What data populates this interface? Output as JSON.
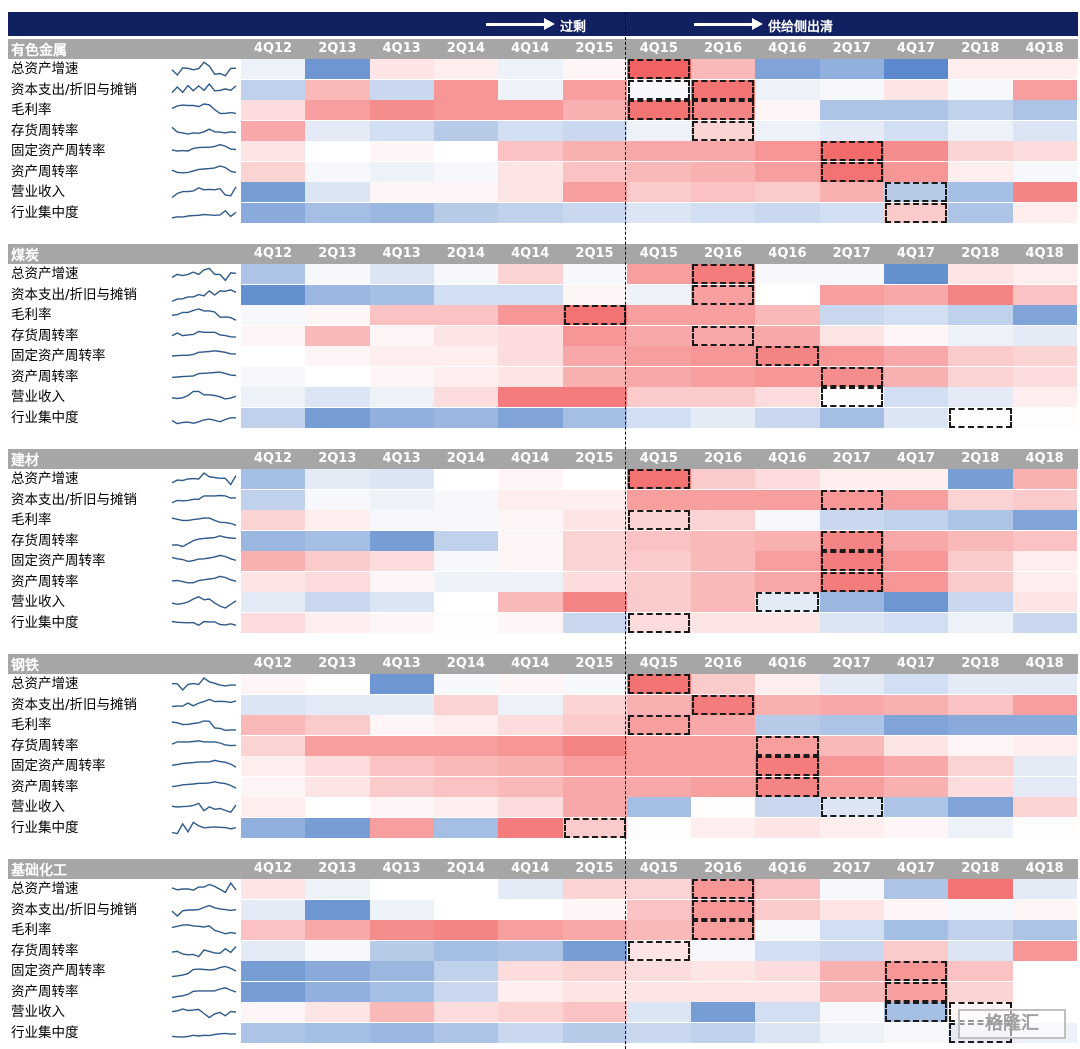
{
  "header": {
    "excess_label": "过剩",
    "clearing_label": "供给侧出清"
  },
  "watermark": "格隆汇",
  "chart_data": {
    "type": "heatmap",
    "color_scale": {
      "low": "#4a7cc7",
      "mid": "#ffffff",
      "high": "#f05050"
    },
    "columns": [
      "4Q12",
      "2Q13",
      "4Q13",
      "2Q14",
      "4Q14",
      "2Q15",
      "4Q15",
      "2Q16",
      "4Q16",
      "2Q17",
      "4Q17",
      "2Q18",
      "4Q18"
    ],
    "panels": [
      {
        "title": "有色金属",
        "rows": [
          {
            "label": "总资产增速",
            "values": [
              -0.1,
              -0.8,
              0.15,
              0.1,
              -0.1,
              0.05,
              0.9,
              0.4,
              -0.7,
              -0.6,
              -0.9,
              0.1,
              0.1
            ],
            "highlight": [
              6
            ]
          },
          {
            "label": "资本支出/折旧与摊销",
            "values": [
              -0.35,
              0.4,
              -0.3,
              0.6,
              -0.1,
              0.55,
              -0.05,
              0.8,
              -0.1,
              -0.05,
              0.15,
              -0.05,
              0.55
            ],
            "highlight": [
              6,
              7
            ]
          },
          {
            "label": "毛利率",
            "values": [
              0.2,
              0.55,
              0.65,
              0.6,
              0.6,
              0.45,
              0.8,
              0.7,
              0.05,
              -0.45,
              -0.45,
              -0.35,
              -0.45
            ],
            "highlight": [
              6,
              7
            ]
          },
          {
            "label": "存货周转率",
            "values": [
              0.5,
              -0.15,
              -0.25,
              -0.4,
              -0.25,
              -0.3,
              -0.1,
              0.25,
              -0.1,
              -0.15,
              -0.25,
              -0.1,
              -0.2
            ],
            "highlight": [
              7
            ]
          },
          {
            "label": "固定资产周转率",
            "values": [
              0.15,
              0,
              0.05,
              0,
              0.35,
              0.45,
              0.5,
              0.5,
              0.6,
              0.85,
              0.65,
              0.25,
              0.2
            ],
            "highlight": [
              9
            ]
          },
          {
            "label": "资产周转率",
            "values": [
              0.25,
              -0.05,
              -0.1,
              -0.05,
              0.15,
              0.35,
              0.4,
              0.45,
              0.55,
              0.8,
              0.6,
              0.1,
              -0.05
            ],
            "highlight": [
              9
            ]
          },
          {
            "label": "营业收入",
            "values": [
              -0.75,
              -0.2,
              0.05,
              0.05,
              0.15,
              0.55,
              0.3,
              0.35,
              0.3,
              0.45,
              -0.4,
              -0.5,
              0.7
            ],
            "highlight": [
              10
            ]
          },
          {
            "label": "行业集中度",
            "values": [
              -0.65,
              -0.5,
              -0.55,
              -0.4,
              -0.35,
              -0.3,
              -0.2,
              -0.25,
              -0.3,
              -0.25,
              0.3,
              -0.45,
              0.1
            ],
            "highlight": [
              10
            ]
          }
        ]
      },
      {
        "title": "煤炭",
        "rows": [
          {
            "label": "总资产增速",
            "values": [
              -0.45,
              -0.05,
              -0.2,
              -0.05,
              0.25,
              -0.05,
              0.55,
              0.75,
              -0.05,
              -0.05,
              -0.85,
              0.15,
              0.1
            ],
            "highlight": [
              7
            ]
          },
          {
            "label": "资本支出/折旧与摊销",
            "values": [
              -0.85,
              -0.55,
              -0.5,
              -0.25,
              -0.25,
              0.05,
              -0.1,
              0.55,
              0,
              0.55,
              0.5,
              0.7,
              0.35
            ],
            "highlight": [
              7
            ]
          },
          {
            "label": "毛利率",
            "values": [
              -0.05,
              0.05,
              0.35,
              0.35,
              0.6,
              0.8,
              0.55,
              0.55,
              0.4,
              -0.3,
              -0.25,
              -0.35,
              -0.7
            ],
            "highlight": [
              5
            ]
          },
          {
            "label": "存货周转率",
            "values": [
              0.05,
              0.4,
              0.05,
              0.15,
              0.2,
              0.6,
              0.5,
              0.5,
              0.5,
              0.15,
              0.05,
              -0.1,
              -0.15
            ],
            "highlight": [
              7
            ]
          },
          {
            "label": "固定资产周转率",
            "values": [
              0,
              0.05,
              0.1,
              0.1,
              0.2,
              0.5,
              0.55,
              0.6,
              0.7,
              0.6,
              0.5,
              0.3,
              0.25
            ],
            "highlight": [
              8
            ]
          },
          {
            "label": "资产周转率",
            "values": [
              -0.05,
              0,
              0.05,
              0.1,
              0.15,
              0.45,
              0.5,
              0.55,
              0.6,
              0.65,
              0.45,
              0.25,
              0.2
            ],
            "highlight": [
              9
            ]
          },
          {
            "label": "营业收入",
            "values": [
              -0.1,
              -0.2,
              -0.1,
              0.2,
              0.75,
              0.75,
              0.3,
              0.3,
              0.2,
              0.02,
              -0.25,
              -0.15,
              0.1
            ],
            "highlight": [
              9
            ]
          },
          {
            "label": "行业集中度",
            "values": [
              -0.35,
              -0.75,
              -0.6,
              -0.55,
              -0.7,
              -0.5,
              -0.25,
              -0.15,
              -0.3,
              -0.5,
              -0.2,
              0.02,
              0.02
            ],
            "highlight": [
              11
            ]
          }
        ]
      },
      {
        "title": "建材",
        "rows": [
          {
            "label": "总资产增速",
            "values": [
              -0.5,
              -0.15,
              -0.2,
              0,
              0.05,
              0,
              0.8,
              0.3,
              0.2,
              0.1,
              0.1,
              -0.75,
              0.45
            ],
            "highlight": [
              6
            ]
          },
          {
            "label": "资本支出/折旧与摊销",
            "values": [
              -0.35,
              -0.05,
              -0.1,
              -0.05,
              0.1,
              0.1,
              0.55,
              0.55,
              0.55,
              0.6,
              0.55,
              0.25,
              0.3
            ],
            "highlight": [
              9
            ]
          },
          {
            "label": "毛利率",
            "values": [
              0.25,
              0.1,
              -0.05,
              -0.05,
              0.05,
              0.15,
              0.25,
              0.25,
              -0.05,
              -0.3,
              -0.35,
              -0.45,
              -0.7
            ],
            "highlight": [
              6
            ]
          },
          {
            "label": "存货周转率",
            "values": [
              -0.55,
              -0.5,
              -0.75,
              -0.35,
              0.05,
              0.25,
              0.35,
              0.4,
              0.45,
              0.7,
              0.5,
              0.4,
              0.35
            ],
            "highlight": [
              9
            ]
          },
          {
            "label": "固定资产周转率",
            "values": [
              0.45,
              0.3,
              0.2,
              -0.05,
              0.05,
              0.25,
              0.3,
              0.4,
              0.55,
              0.75,
              0.6,
              0.3,
              0.1
            ],
            "highlight": [
              9
            ]
          },
          {
            "label": "资产周转率",
            "values": [
              0.15,
              0.2,
              0.05,
              -0.1,
              -0.1,
              0.2,
              0.3,
              0.4,
              0.5,
              0.75,
              0.6,
              0.3,
              0.1
            ],
            "highlight": [
              9
            ]
          },
          {
            "label": "营业收入",
            "values": [
              -0.15,
              -0.3,
              -0.2,
              0,
              0.4,
              0.7,
              0.3,
              0.4,
              -0.15,
              -0.55,
              -0.8,
              -0.3,
              0.15
            ],
            "highlight": [
              8
            ]
          },
          {
            "label": "行业集中度",
            "values": [
              0.2,
              0.1,
              0.05,
              0.02,
              0.05,
              -0.3,
              0.2,
              0.15,
              0.15,
              -0.2,
              -0.25,
              -0.1,
              -0.3
            ],
            "highlight": [
              6
            ]
          }
        ]
      },
      {
        "title": "钢铁",
        "rows": [
          {
            "label": "总资产增速",
            "values": [
              0.05,
              0.02,
              -0.8,
              -0.05,
              0.05,
              -0.05,
              0.8,
              0.3,
              0.1,
              -0.15,
              -0.25,
              -0.15,
              -0.15
            ],
            "highlight": [
              6
            ]
          },
          {
            "label": "资本支出/折旧与摊销",
            "values": [
              -0.2,
              -0.15,
              -0.15,
              0.25,
              -0.1,
              0.25,
              0.45,
              0.75,
              0.45,
              0.5,
              0.45,
              0.35,
              0.55
            ],
            "highlight": [
              7
            ]
          },
          {
            "label": "毛利率",
            "values": [
              0.4,
              0.3,
              0.05,
              0.1,
              0.2,
              0.3,
              0.55,
              0.5,
              -0.4,
              -0.45,
              -0.7,
              -0.65,
              -0.65
            ],
            "highlight": [
              6
            ]
          },
          {
            "label": "存货周转率",
            "values": [
              0.25,
              0.55,
              0.55,
              0.55,
              0.6,
              0.7,
              0.55,
              0.55,
              0.55,
              0.4,
              0.15,
              0.05,
              0.1
            ],
            "highlight": [
              8
            ]
          },
          {
            "label": "固定资产周转率",
            "values": [
              0.1,
              0.2,
              0.35,
              0.4,
              0.45,
              0.55,
              0.55,
              0.55,
              0.75,
              0.6,
              0.5,
              0.25,
              -0.15
            ],
            "highlight": [
              8
            ]
          },
          {
            "label": "资产周转率",
            "values": [
              0.05,
              0.15,
              0.3,
              0.35,
              0.4,
              0.5,
              0.5,
              0.55,
              0.7,
              0.55,
              0.45,
              0.2,
              -0.15
            ],
            "highlight": [
              8
            ]
          },
          {
            "label": "营业收入",
            "values": [
              0.1,
              0,
              0.05,
              0.1,
              0.2,
              0.5,
              -0.5,
              0.02,
              -0.3,
              -0.2,
              -0.45,
              -0.7,
              0.25
            ],
            "highlight": [
              9
            ]
          },
          {
            "label": "行业集中度",
            "values": [
              -0.6,
              -0.75,
              0.55,
              -0.5,
              0.75,
              0.3,
              0.02,
              0.1,
              0.15,
              0.1,
              0.05,
              -0.1,
              0.02
            ],
            "highlight": [
              5
            ]
          }
        ]
      },
      {
        "title": "基础化工",
        "rows": [
          {
            "label": "总资产增速",
            "values": [
              0.15,
              -0.1,
              0,
              0,
              -0.15,
              0.25,
              0.25,
              0.6,
              0.35,
              -0.05,
              -0.45,
              0.8,
              -0.15
            ],
            "highlight": [
              7
            ]
          },
          {
            "label": "资本支出/折旧与摊销",
            "values": [
              -0.15,
              -0.8,
              -0.1,
              0,
              0,
              0.05,
              0.35,
              0.6,
              0.3,
              0.15,
              0.05,
              -0.05,
              0.05
            ],
            "highlight": [
              7
            ]
          },
          {
            "label": "毛利率",
            "values": [
              0.35,
              0.5,
              0.65,
              0.7,
              0.55,
              0.5,
              0.4,
              0.55,
              -0.05,
              -0.25,
              -0.5,
              -0.35,
              -0.45
            ],
            "highlight": [
              7
            ]
          },
          {
            "label": "存货周转率",
            "values": [
              -0.15,
              -0.05,
              -0.4,
              -0.5,
              -0.45,
              -0.75,
              0.15,
              -0.05,
              -0.25,
              -0.3,
              0.3,
              -0.2,
              0.6
            ],
            "highlight": [
              6
            ]
          },
          {
            "label": "固定资产周转率",
            "values": [
              -0.75,
              -0.65,
              -0.55,
              -0.35,
              0.2,
              0.25,
              0.2,
              0.15,
              0.2,
              0.45,
              0.6,
              0.35,
              0
            ],
            "highlight": [
              10
            ]
          },
          {
            "label": "资产周转率",
            "values": [
              -0.75,
              -0.6,
              -0.5,
              -0.3,
              0.1,
              0.15,
              0.15,
              0.15,
              0.15,
              0.4,
              0.55,
              0.25,
              0
            ],
            "highlight": [
              10
            ]
          },
          {
            "label": "营业收入",
            "values": [
              0.05,
              0.15,
              0.4,
              0.2,
              0.25,
              0.35,
              -0.2,
              -0.75,
              -0.25,
              -0.05,
              -0.5,
              0.05,
              0
            ],
            "highlight": [
              10,
              11
            ]
          },
          {
            "label": "行业集中度",
            "values": [
              -0.45,
              -0.5,
              -0.55,
              -0.45,
              -0.3,
              -0.4,
              -0.3,
              -0.35,
              -0.2,
              -0.1,
              -0.05,
              -0.15,
              -0.1
            ],
            "highlight": [
              11
            ]
          }
        ]
      }
    ]
  }
}
